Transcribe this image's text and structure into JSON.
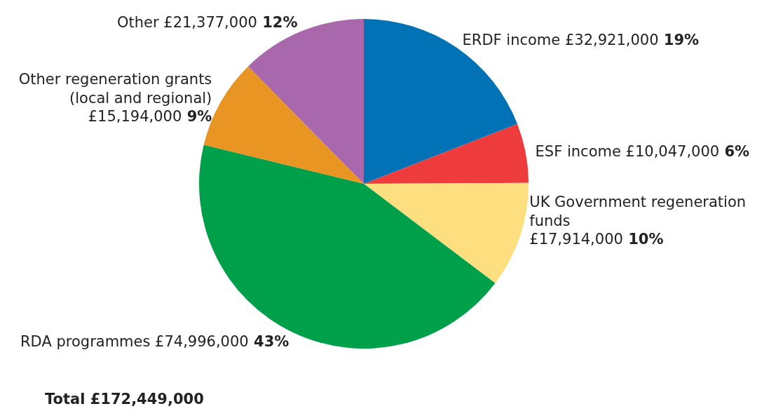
{
  "chart_data": {
    "type": "pie",
    "categories": [
      "ERDF income",
      "ESF income",
      "UK Government regeneration funds",
      "RDA programmes",
      "Other regeneration grants (local and regional)",
      "Other"
    ],
    "values": [
      32921000,
      10047000,
      17914000,
      74996000,
      15194000,
      21377000
    ],
    "value_labels": [
      "£32,921,000 19%",
      "£10,047,000 6%",
      "£17,914,000 10%",
      "£74,996,000 43%",
      "£15,194,000 9%",
      "£21,377,000 12%"
    ],
    "colors": [
      "#0072b5",
      "#ee3b3b",
      "#fddf80",
      "#009f4a",
      "#e89524",
      "#a868ab"
    ],
    "annotations": [
      "Total £172,449,000"
    ]
  }
}
